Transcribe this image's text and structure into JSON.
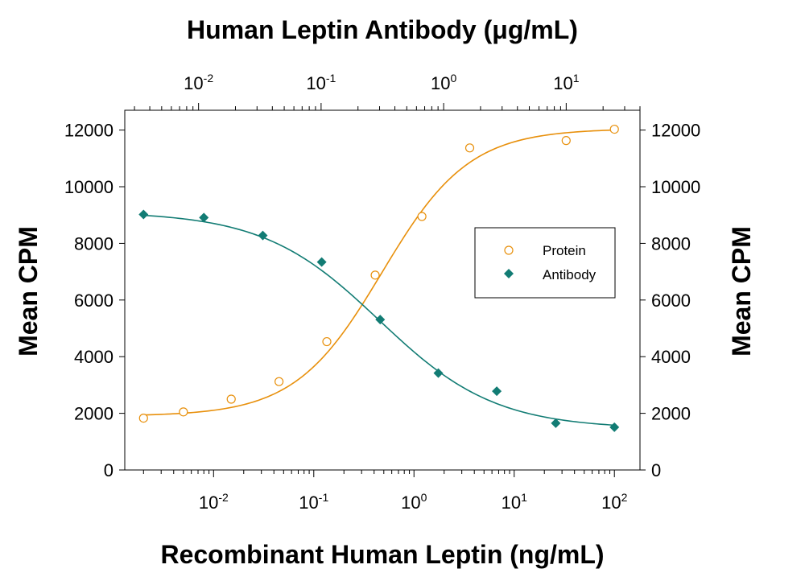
{
  "chart_data": {
    "type": "scatter",
    "title": "",
    "top_axis_label": "Human Leptin Antibody (μg/mL)",
    "xlabel": "Recombinant Human Leptin (ng/mL)",
    "ylabel": "Mean CPM",
    "y2label": "Mean CPM",
    "x_scale": "log",
    "x_base": "10",
    "xlim": [
      0.0013,
      180
    ],
    "x_ticks": [
      0.01,
      0.1,
      1,
      10,
      100
    ],
    "x_tick_exponents": [
      "-2",
      "-1",
      "0",
      "1",
      "2"
    ],
    "top_xlim": [
      0.0025,
      40
    ],
    "top_x_ticks": [
      0.01,
      0.1,
      1,
      10
    ],
    "top_x_tick_exponents": [
      "-2",
      "-1",
      "0",
      "1"
    ],
    "ylim": [
      0,
      12700
    ],
    "y_ticks": [
      0,
      2000,
      4000,
      6000,
      8000,
      10000,
      12000
    ],
    "y_tick_labels": [
      "0",
      "2000",
      "4000",
      "6000",
      "8000",
      "10000",
      "12000"
    ],
    "grid": false,
    "legend_position": "center-right",
    "series": [
      {
        "name": "Protein",
        "marker": "open-circle",
        "color": "#E8900C",
        "axis": "bottom",
        "points": [
          {
            "x": 0.002,
            "y": 1830
          },
          {
            "x": 0.005,
            "y": 2050
          },
          {
            "x": 0.015,
            "y": 2500
          },
          {
            "x": 0.045,
            "y": 3120
          },
          {
            "x": 0.135,
            "y": 4530
          },
          {
            "x": 0.41,
            "y": 6880
          },
          {
            "x": 1.2,
            "y": 8950
          },
          {
            "x": 3.6,
            "y": 11370
          },
          {
            "x": 33,
            "y": 11630
          },
          {
            "x": 100,
            "y": 12030
          }
        ],
        "fit": {
          "model": "4PL",
          "bottom": 1900,
          "top": 12050,
          "ec50": 0.48,
          "hill": 1.0
        }
      },
      {
        "name": "Antibody",
        "marker": "filled-diamond",
        "color": "#127C74",
        "axis": "bottom",
        "points": [
          {
            "x": 0.002,
            "y": 9020
          },
          {
            "x": 0.008,
            "y": 8910
          },
          {
            "x": 0.031,
            "y": 8280
          },
          {
            "x": 0.12,
            "y": 7340
          },
          {
            "x": 0.46,
            "y": 5310
          },
          {
            "x": 1.75,
            "y": 3420
          },
          {
            "x": 6.7,
            "y": 2780
          },
          {
            "x": 26,
            "y": 1650
          },
          {
            "x": 100,
            "y": 1510
          }
        ],
        "fit": {
          "model": "4PL",
          "bottom": 1450,
          "top": 9120,
          "ec50": 0.45,
          "hill": 0.75
        }
      }
    ]
  }
}
